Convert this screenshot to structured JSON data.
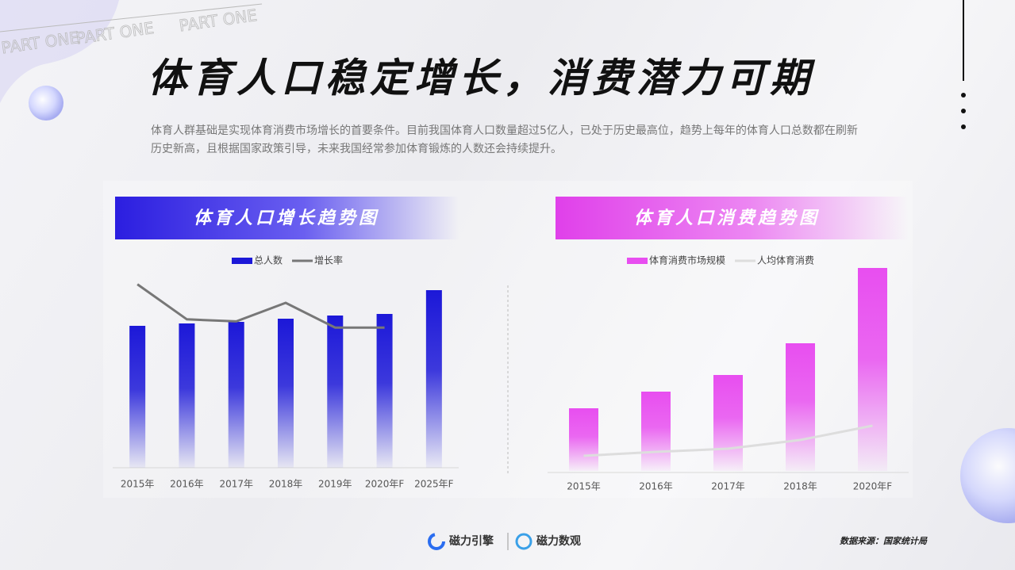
{
  "header": {
    "title": "体育人口稳定增长，消费潜力可期",
    "body": "体育人群基础是实现体育消费市场增长的首要条件。目前我国体育人口数量超过5亿人，已处于历史最高位，趋势上每年的体育人口总数都在刷新历史新高，且根据国家政策引导，未来我国经常参加体育锻炼的人数还会持续提升。"
  },
  "decor": [
    "PART ONE",
    "PART ONE",
    "PART ONE"
  ],
  "footer": {
    "brand1": "磁力引擎",
    "brand2": "磁力数观",
    "source": "数据来源：国家统计局"
  },
  "chart_data": [
    {
      "type": "bar",
      "title": "体育人口增长趋势图",
      "categories": [
        "2015年",
        "2016年",
        "2017年",
        "2018年",
        "2019年",
        "2020年F",
        "2025年F"
      ],
      "series": [
        {
          "name": "总人数",
          "type": "bar",
          "color": "#1c18d8",
          "values": [
            179,
            182,
            184,
            188,
            192,
            194,
            224
          ]
        },
        {
          "name": "增长率",
          "type": "line",
          "axis": "y2",
          "color": "#777777",
          "values": [
            89,
            72,
            71,
            80,
            68,
            68,
            null
          ]
        }
      ],
      "ylim": [
        0,
        260
      ],
      "y2lim": [
        0,
        100
      ]
    },
    {
      "type": "bar",
      "title": "体育人口消费趋势图",
      "categories": [
        "2015年",
        "2016年",
        "2017年",
        "2018年",
        "2020年F"
      ],
      "series": [
        {
          "name": "体育消费市场规模",
          "type": "bar",
          "color": "#e84ef0",
          "values": [
            79,
            100,
            121,
            161,
            256
          ]
        },
        {
          "name": "人均体育消费",
          "type": "line",
          "color": "#dddddd",
          "values": [
            19,
            24,
            28,
            39,
            57
          ]
        }
      ],
      "ylim": [
        0,
        260
      ]
    }
  ]
}
